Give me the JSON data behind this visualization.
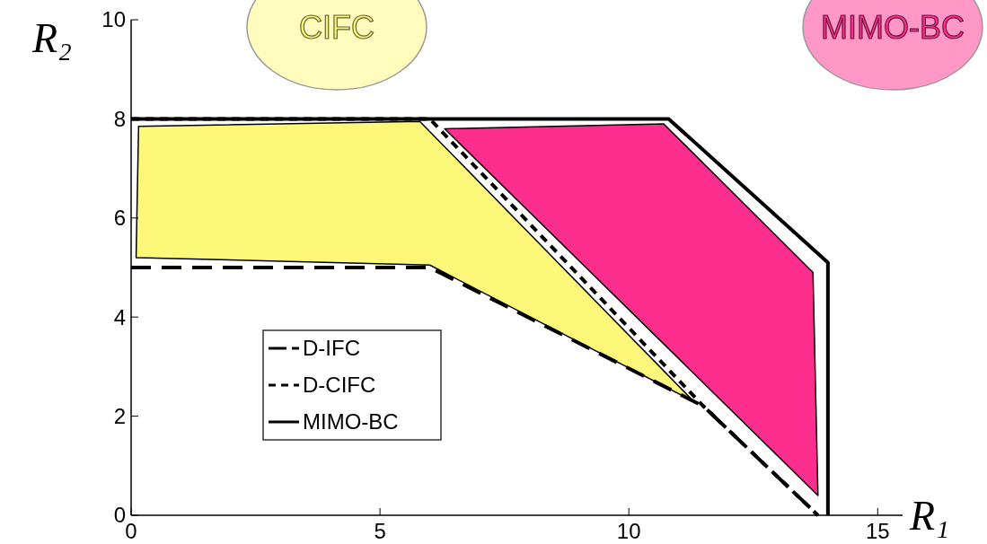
{
  "chart_data": {
    "type": "line",
    "xlabel": "R₁",
    "ylabel": "R₂",
    "xlim": [
      0,
      15.5
    ],
    "ylim": [
      0,
      10
    ],
    "xticks": [
      0,
      5,
      10,
      15
    ],
    "yticks": [
      0,
      2,
      4,
      6,
      8,
      10
    ],
    "grid": false,
    "legend": "left",
    "series": [
      {
        "type": "area",
        "name": "CIFC",
        "color": "#fef87a",
        "x": [
          0.15,
          5.8,
          11.3,
          6.0,
          0.1
        ],
        "values": [
          7.85,
          7.95,
          2.3,
          5.05,
          5.2
        ]
      },
      {
        "type": "area",
        "name": "MIMO-BC",
        "color": "#fe2e8f",
        "x": [
          6.3,
          10.7,
          13.7,
          13.8
        ],
        "values": [
          7.8,
          7.9,
          4.9,
          0.4
        ]
      },
      {
        "name": "D-IFC",
        "color": "#000000",
        "line_style": "dashed",
        "x": [
          0,
          6,
          11.5,
          13.8
        ],
        "values": [
          5,
          5,
          2.2,
          0
        ]
      },
      {
        "name": "D-CIFC",
        "color": "#000000",
        "line_style": "dotted",
        "x": [
          0,
          6,
          11.5,
          13.8
        ],
        "values": [
          8,
          8,
          2.2,
          0
        ]
      },
      {
        "name": "MIMO-BC",
        "color": "#000000",
        "line_style": "solid",
        "x": [
          0,
          10.8,
          14,
          14
        ],
        "values": [
          8,
          8,
          5.1,
          0
        ]
      }
    ]
  }
}
